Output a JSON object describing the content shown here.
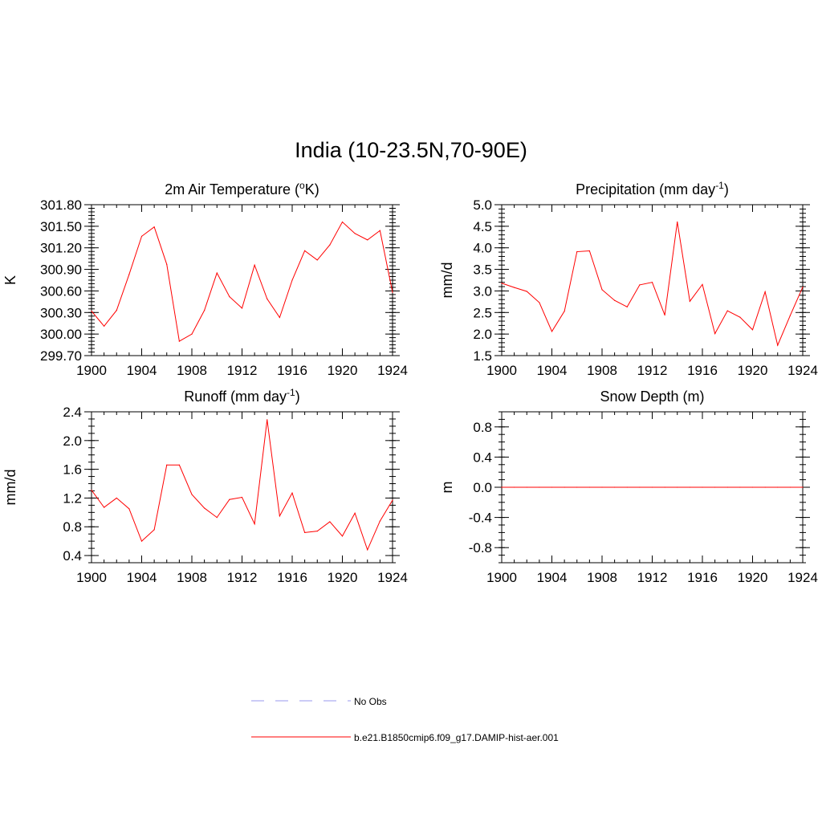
{
  "page": {
    "title": "India (10-23.5N,70-90E)"
  },
  "legend": {
    "entries": [
      {
        "label": "No Obs",
        "color": "#9999ee",
        "style": "dashed"
      },
      {
        "label": "b.e21.B1850cmip6.f09_g17.DAMIP-hist-aer.001",
        "color": "#ff0000",
        "style": "solid"
      }
    ]
  },
  "chart_data": [
    {
      "type": "line",
      "title": "2m Air Temperature (oK)",
      "title_main": "2m Air Temperature (",
      "title_sup": "o",
      "title_tail": "K)",
      "ylabel": "K",
      "xlim": [
        1900,
        1924
      ],
      "ylim": [
        299.7,
        301.8
      ],
      "xticks": [
        1900,
        1904,
        1908,
        1912,
        1916,
        1920,
        1924
      ],
      "xticklabels": [
        "1900",
        "1904",
        "1908",
        "1912",
        "1916",
        "1920",
        "1924"
      ],
      "yticks": [
        299.7,
        300.0,
        300.3,
        300.6,
        300.9,
        301.2,
        301.5,
        301.8
      ],
      "yticklabels": [
        "299.70",
        "300.00",
        "300.30",
        "300.60",
        "300.90",
        "301.20",
        "301.50",
        "301.80"
      ],
      "yminor_step": 0.05,
      "color": "#ff0000",
      "series": [
        {
          "x": [
            1900,
            1901,
            1902,
            1903,
            1904,
            1905,
            1906,
            1907,
            1908,
            1909,
            1910,
            1911,
            1912,
            1913,
            1914,
            1915,
            1916,
            1917,
            1918,
            1919,
            1920,
            1921,
            1922,
            1923,
            1924
          ],
          "y": [
            300.32,
            300.11,
            300.33,
            300.83,
            301.36,
            301.49,
            300.97,
            299.9,
            300.0,
            300.33,
            300.85,
            300.52,
            300.36,
            300.96,
            300.49,
            300.23,
            300.75,
            301.16,
            301.03,
            301.24,
            301.56,
            301.4,
            301.31,
            301.44,
            300.58
          ]
        }
      ]
    },
    {
      "type": "line",
      "title": "Precipitation (mm day-1)",
      "title_main": "Precipitation (mm day",
      "title_sup": "-1",
      "title_tail": ")",
      "ylabel": "mm/d",
      "xlim": [
        1900,
        1924
      ],
      "ylim": [
        1.5,
        5.0
      ],
      "xticks": [
        1900,
        1904,
        1908,
        1912,
        1916,
        1920,
        1924
      ],
      "xticklabels": [
        "1900",
        "1904",
        "1908",
        "1912",
        "1916",
        "1920",
        "1924"
      ],
      "yticks": [
        1.5,
        2.0,
        2.5,
        3.0,
        3.5,
        4.0,
        4.5,
        5.0
      ],
      "yticklabels": [
        "1.5",
        "2.0",
        "2.5",
        "3.0",
        "3.5",
        "4.0",
        "4.5",
        "5.0"
      ],
      "yminor_step": 0.1,
      "color": "#ff0000",
      "series": [
        {
          "x": [
            1900,
            1901,
            1902,
            1903,
            1904,
            1905,
            1906,
            1907,
            1908,
            1909,
            1910,
            1911,
            1912,
            1913,
            1914,
            1915,
            1916,
            1917,
            1918,
            1919,
            1920,
            1921,
            1922,
            1923,
            1924
          ],
          "y": [
            3.18,
            3.08,
            2.99,
            2.73,
            2.06,
            2.53,
            3.91,
            3.93,
            3.03,
            2.78,
            2.63,
            3.14,
            3.2,
            2.44,
            4.6,
            2.76,
            3.15,
            2.01,
            2.54,
            2.39,
            2.1,
            2.98,
            1.74,
            2.43,
            3.09
          ]
        }
      ]
    },
    {
      "type": "line",
      "title": "Runoff (mm day-1)",
      "title_main": "Runoff (mm day",
      "title_sup": "-1",
      "title_tail": ")",
      "ylabel": "mm/d",
      "xlim": [
        1900,
        1924
      ],
      "ylim": [
        0.3,
        2.4
      ],
      "xticks": [
        1900,
        1904,
        1908,
        1912,
        1916,
        1920,
        1924
      ],
      "xticklabels": [
        "1900",
        "1904",
        "1908",
        "1912",
        "1916",
        "1920",
        "1924"
      ],
      "yticks": [
        0.4,
        0.8,
        1.2,
        1.6,
        2.0,
        2.4
      ],
      "yticklabels": [
        "0.4",
        "0.8",
        "1.2",
        "1.6",
        "2.0",
        "2.4"
      ],
      "yminor_step": 0.1,
      "color": "#ff0000",
      "series": [
        {
          "x": [
            1900,
            1901,
            1902,
            1903,
            1904,
            1905,
            1906,
            1907,
            1908,
            1909,
            1910,
            1911,
            1912,
            1913,
            1914,
            1915,
            1916,
            1917,
            1918,
            1919,
            1920,
            1921,
            1922,
            1923,
            1924
          ],
          "y": [
            1.31,
            1.07,
            1.2,
            1.05,
            0.6,
            0.76,
            1.66,
            1.66,
            1.25,
            1.06,
            0.93,
            1.18,
            1.21,
            0.84,
            2.29,
            0.95,
            1.27,
            0.72,
            0.74,
            0.87,
            0.67,
            0.99,
            0.48,
            0.88,
            1.17
          ]
        }
      ]
    },
    {
      "type": "line",
      "title": "Snow Depth (m)",
      "title_main": "Snow Depth (m)",
      "title_sup": "",
      "title_tail": "",
      "ylabel": "m",
      "xlim": [
        1900,
        1924
      ],
      "ylim": [
        -1.0,
        1.0
      ],
      "xticks": [
        1900,
        1904,
        1908,
        1912,
        1916,
        1920,
        1924
      ],
      "xticklabels": [
        "1900",
        "1904",
        "1908",
        "1912",
        "1916",
        "1920",
        "1924"
      ],
      "yticks": [
        -0.8,
        -0.4,
        0.0,
        0.4,
        0.8
      ],
      "yticklabels": [
        "-0.8",
        "-0.4",
        "0.0",
        "0.4",
        "0.8"
      ],
      "yminor_step": 0.1,
      "color": "#ff0000",
      "series": [
        {
          "x": [
            1900,
            1901,
            1902,
            1903,
            1904,
            1905,
            1906,
            1907,
            1908,
            1909,
            1910,
            1911,
            1912,
            1913,
            1914,
            1915,
            1916,
            1917,
            1918,
            1919,
            1920,
            1921,
            1922,
            1923,
            1924
          ],
          "y": [
            0,
            0,
            0,
            0,
            0,
            0,
            0,
            0,
            0,
            0,
            0,
            0,
            0,
            0,
            0,
            0,
            0,
            0,
            0,
            0,
            0,
            0,
            0,
            0,
            0
          ]
        }
      ]
    }
  ]
}
